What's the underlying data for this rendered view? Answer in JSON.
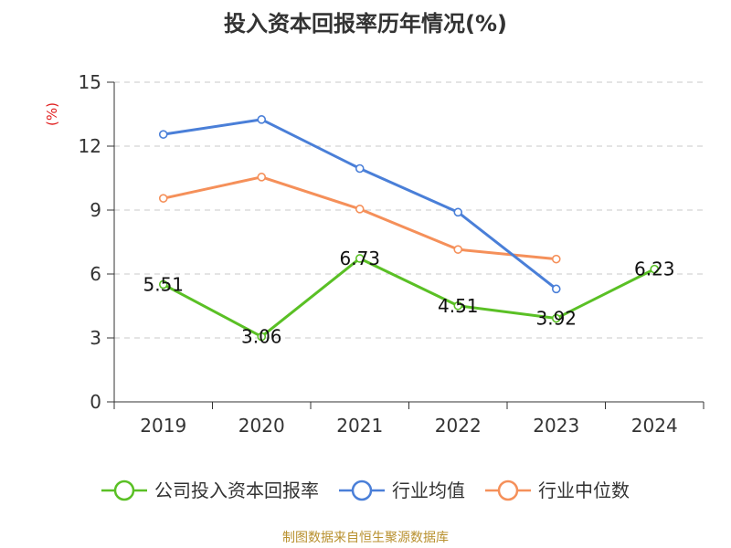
{
  "chart_data": {
    "type": "line",
    "title": "投入资本回报率历年情况(%)",
    "unit_label": "(%)",
    "unit_color": "#e02020",
    "categories": [
      "2019",
      "2020",
      "2021",
      "2022",
      "2023",
      "2024"
    ],
    "ylim": [
      0,
      15
    ],
    "yticks": [
      0,
      3,
      6,
      9,
      12,
      15
    ],
    "grid": true,
    "legend_position": "bottom",
    "series": [
      {
        "name": "公司投入资本回报率",
        "color": "#5ac025",
        "values": [
          5.51,
          3.06,
          6.73,
          4.51,
          3.92,
          6.23
        ],
        "data_labels": [
          "5.51",
          "3.06",
          "6.73",
          "4.51",
          "3.92",
          "6.23"
        ]
      },
      {
        "name": "行业均值",
        "color": "#4a7fd8",
        "values": [
          12.55,
          13.25,
          10.95,
          8.9,
          5.3,
          null
        ]
      },
      {
        "name": "行业中位数",
        "color": "#f5905a",
        "values": [
          9.55,
          10.55,
          9.05,
          7.15,
          6.7,
          null
        ]
      }
    ]
  },
  "source_note": "制图数据来自恒生聚源数据库"
}
